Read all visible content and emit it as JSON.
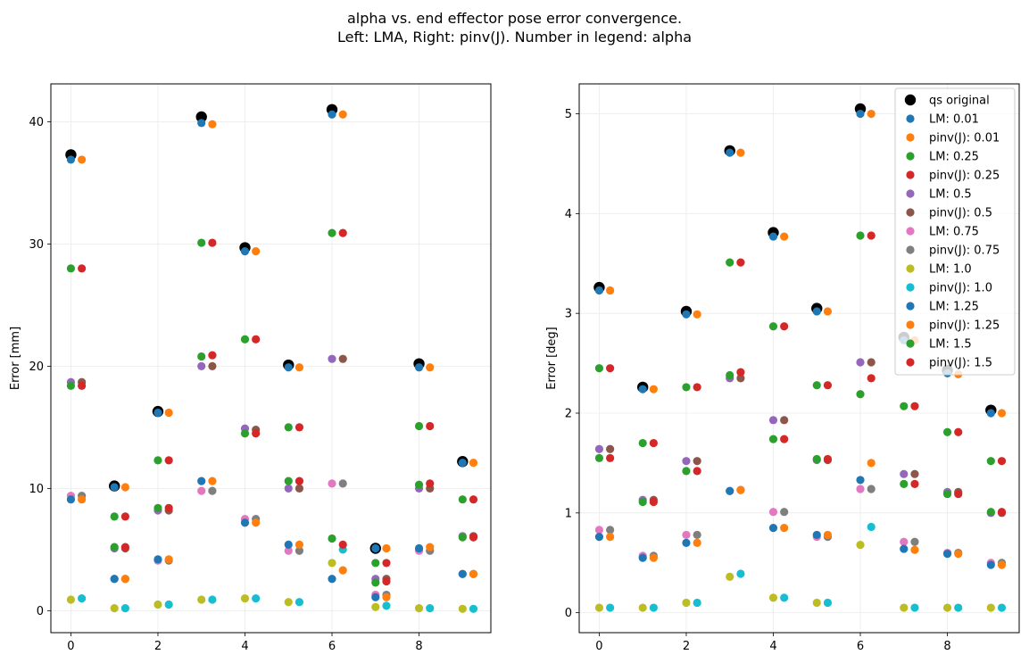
{
  "figure": {
    "title_line1": "alpha vs. end effector pose error convergence.",
    "title_line2": "Left: LMA, Right: pinv(J). Number in legend: alpha"
  },
  "colors": {
    "original": "#000000",
    "lm_001": "#1f77b4",
    "pinv_001": "#ff7f0e",
    "lm_025": "#2ca02c",
    "pinv_025": "#d62728",
    "lm_05": "#9467bd",
    "pinv_05": "#8c564b",
    "lm_075": "#e377c2",
    "pinv_075": "#7f7f7f",
    "lm_10": "#bcbd22",
    "pinv_10": "#17becf",
    "lm_125": "#1f77b4",
    "pinv_125": "#ff7f0e",
    "lm_15": "#2ca02c",
    "pinv_15": "#d62728"
  },
  "chart_data": [
    {
      "type": "scatter",
      "title": "",
      "xlabel": "",
      "ylabel": "Error [mm]",
      "xlim": [
        -0.46,
        9.65
      ],
      "ylim": [
        -1.8,
        43.1
      ],
      "xticks": [
        0,
        2,
        4,
        6,
        8
      ],
      "yticks": [
        0,
        10,
        20,
        30,
        40
      ],
      "grid": true,
      "legend": "none",
      "series": [
        {
          "name": "qs original",
          "color": "#000000",
          "offset": 0,
          "size": "large",
          "values": [
            37.3,
            10.2,
            16.3,
            40.4,
            29.7,
            20.1,
            41.0,
            5.1,
            20.2,
            12.2
          ]
        },
        {
          "name": "LM: 0.01",
          "color": "#1f77b4",
          "offset": 0,
          "values": [
            36.9,
            10.1,
            16.2,
            39.9,
            29.4,
            19.9,
            40.6,
            5.1,
            19.9,
            12.1
          ]
        },
        {
          "name": "pinv(J): 0.01",
          "color": "#ff7f0e",
          "offset": 0.25,
          "values": [
            36.9,
            10.1,
            16.2,
            39.8,
            29.4,
            19.9,
            40.6,
            5.1,
            19.9,
            12.1
          ]
        },
        {
          "name": "LM: 0.25",
          "color": "#2ca02c",
          "offset": 0,
          "values": [
            28.0,
            7.7,
            12.3,
            30.1,
            22.2,
            15.0,
            30.9,
            3.9,
            15.1,
            9.1
          ]
        },
        {
          "name": "pinv(J): 0.25",
          "color": "#d62728",
          "offset": 0.25,
          "values": [
            28.0,
            7.7,
            12.3,
            30.1,
            22.2,
            15.0,
            30.9,
            3.9,
            15.1,
            9.1
          ]
        },
        {
          "name": "LM: 0.5",
          "color": "#9467bd",
          "offset": 0,
          "values": [
            18.7,
            5.1,
            8.2,
            20.0,
            14.9,
            10.0,
            20.6,
            2.6,
            10.0,
            6.1
          ]
        },
        {
          "name": "pinv(J): 0.5",
          "color": "#8c564b",
          "offset": 0.25,
          "values": [
            18.7,
            5.1,
            8.2,
            20.0,
            14.8,
            10.0,
            20.6,
            2.6,
            10.0,
            6.1
          ]
        },
        {
          "name": "LM: 0.75",
          "color": "#e377c2",
          "offset": 0,
          "values": [
            9.4,
            2.6,
            4.1,
            9.8,
            7.5,
            4.9,
            10.4,
            1.3,
            4.9,
            3.0
          ]
        },
        {
          "name": "pinv(J): 0.75",
          "color": "#7f7f7f",
          "offset": 0.25,
          "values": [
            9.4,
            2.6,
            4.1,
            9.8,
            7.5,
            4.9,
            10.4,
            1.3,
            4.9,
            3.0
          ]
        },
        {
          "name": "LM: 1.0",
          "color": "#bcbd22",
          "offset": 0,
          "values": [
            0.9,
            0.2,
            0.5,
            0.9,
            1.0,
            0.7,
            3.9,
            0.3,
            0.2,
            0.15
          ]
        },
        {
          "name": "pinv(J): 1.0",
          "color": "#17becf",
          "offset": 0.25,
          "values": [
            1.0,
            0.2,
            0.5,
            0.9,
            1.0,
            0.7,
            5.0,
            0.4,
            0.2,
            0.15
          ]
        },
        {
          "name": "LM: 1.25",
          "color": "#1f77b4",
          "offset": 0,
          "values": [
            9.1,
            2.6,
            4.2,
            10.6,
            7.2,
            5.4,
            2.6,
            1.1,
            5.1,
            3.0
          ]
        },
        {
          "name": "pinv(J): 1.25",
          "color": "#ff7f0e",
          "offset": 0.25,
          "values": [
            9.1,
            2.6,
            4.2,
            10.6,
            7.2,
            5.4,
            3.3,
            1.1,
            5.2,
            3.0
          ]
        },
        {
          "name": "LM: 1.5",
          "color": "#2ca02c",
          "offset": 0,
          "values": [
            18.4,
            5.2,
            8.4,
            20.8,
            14.5,
            10.6,
            5.9,
            2.3,
            10.3,
            6.0
          ]
        },
        {
          "name": "pinv(J): 1.5",
          "color": "#d62728",
          "offset": 0.25,
          "values": [
            18.4,
            5.2,
            8.4,
            20.9,
            14.5,
            10.6,
            5.4,
            2.4,
            10.4,
            6.0
          ]
        }
      ]
    },
    {
      "type": "scatter",
      "title": "",
      "xlabel": "",
      "ylabel": "Error [deg]",
      "xlim": [
        -0.46,
        9.65
      ],
      "ylim": [
        -0.2,
        5.3
      ],
      "xticks": [
        0,
        2,
        4,
        6,
        8
      ],
      "yticks": [
        0,
        1,
        2,
        3,
        4,
        5
      ],
      "grid": true,
      "legend": "upper right",
      "series": [
        {
          "name": "qs original",
          "color": "#000000",
          "offset": 0,
          "size": "large",
          "values": [
            3.26,
            2.26,
            3.02,
            4.63,
            3.81,
            3.05,
            5.05,
            2.76,
            2.43,
            2.03
          ]
        },
        {
          "name": "LM: 0.01",
          "color": "#1f77b4",
          "offset": 0,
          "values": [
            3.23,
            2.24,
            2.99,
            4.61,
            3.77,
            3.02,
            5.0,
            2.73,
            2.4,
            2.0
          ]
        },
        {
          "name": "pinv(J): 0.01",
          "color": "#ff7f0e",
          "offset": 0.25,
          "values": [
            3.23,
            2.24,
            2.99,
            4.61,
            3.77,
            3.02,
            5.0,
            2.73,
            2.39,
            2.0
          ]
        },
        {
          "name": "LM: 0.25",
          "color": "#2ca02c",
          "offset": 0,
          "values": [
            2.45,
            1.7,
            2.26,
            3.51,
            2.87,
            2.28,
            3.78,
            2.07,
            1.81,
            1.52
          ]
        },
        {
          "name": "pinv(J): 0.25",
          "color": "#d62728",
          "offset": 0.25,
          "values": [
            2.45,
            1.7,
            2.26,
            3.51,
            2.87,
            2.28,
            3.78,
            2.07,
            1.81,
            1.52
          ]
        },
        {
          "name": "LM: 0.5",
          "color": "#9467bd",
          "offset": 0,
          "values": [
            1.64,
            1.13,
            1.52,
            2.35,
            1.93,
            1.53,
            2.51,
            1.39,
            1.21,
            1.0
          ]
        },
        {
          "name": "pinv(J): 0.5",
          "color": "#8c564b",
          "offset": 0.25,
          "values": [
            1.64,
            1.13,
            1.52,
            2.35,
            1.93,
            1.53,
            2.51,
            1.39,
            1.21,
            1.0
          ]
        },
        {
          "name": "LM: 0.75",
          "color": "#e377c2",
          "offset": 0,
          "values": [
            0.83,
            0.57,
            0.78,
            1.22,
            1.01,
            0.76,
            1.24,
            0.71,
            0.6,
            0.5
          ]
        },
        {
          "name": "pinv(J): 0.75",
          "color": "#7f7f7f",
          "offset": 0.25,
          "values": [
            0.83,
            0.57,
            0.78,
            1.23,
            1.01,
            0.76,
            1.24,
            0.71,
            0.6,
            0.5
          ]
        },
        {
          "name": "LM: 1.0",
          "color": "#bcbd22",
          "offset": 0,
          "values": [
            0.05,
            0.05,
            0.1,
            0.36,
            0.15,
            0.1,
            0.68,
            0.05,
            0.05,
            0.05
          ]
        },
        {
          "name": "pinv(J): 1.0",
          "color": "#17becf",
          "offset": 0.25,
          "values": [
            0.05,
            0.05,
            0.1,
            0.39,
            0.15,
            0.1,
            0.86,
            0.05,
            0.05,
            0.05
          ]
        },
        {
          "name": "LM: 1.25",
          "color": "#1f77b4",
          "offset": 0,
          "values": [
            0.76,
            0.55,
            0.7,
            1.22,
            0.85,
            0.78,
            1.33,
            0.64,
            0.59,
            0.48
          ]
        },
        {
          "name": "pinv(J): 1.25",
          "color": "#ff7f0e",
          "offset": 0.25,
          "values": [
            0.76,
            0.55,
            0.7,
            1.23,
            0.85,
            0.78,
            1.5,
            0.63,
            0.59,
            0.48
          ]
        },
        {
          "name": "LM: 1.5",
          "color": "#2ca02c",
          "offset": 0,
          "values": [
            1.55,
            1.11,
            1.42,
            2.38,
            1.74,
            1.54,
            2.19,
            1.29,
            1.19,
            1.01
          ]
        },
        {
          "name": "pinv(J): 1.5",
          "color": "#d62728",
          "offset": 0.25,
          "values": [
            1.55,
            1.11,
            1.42,
            2.41,
            1.74,
            1.54,
            2.35,
            1.29,
            1.19,
            1.01
          ]
        }
      ]
    }
  ]
}
